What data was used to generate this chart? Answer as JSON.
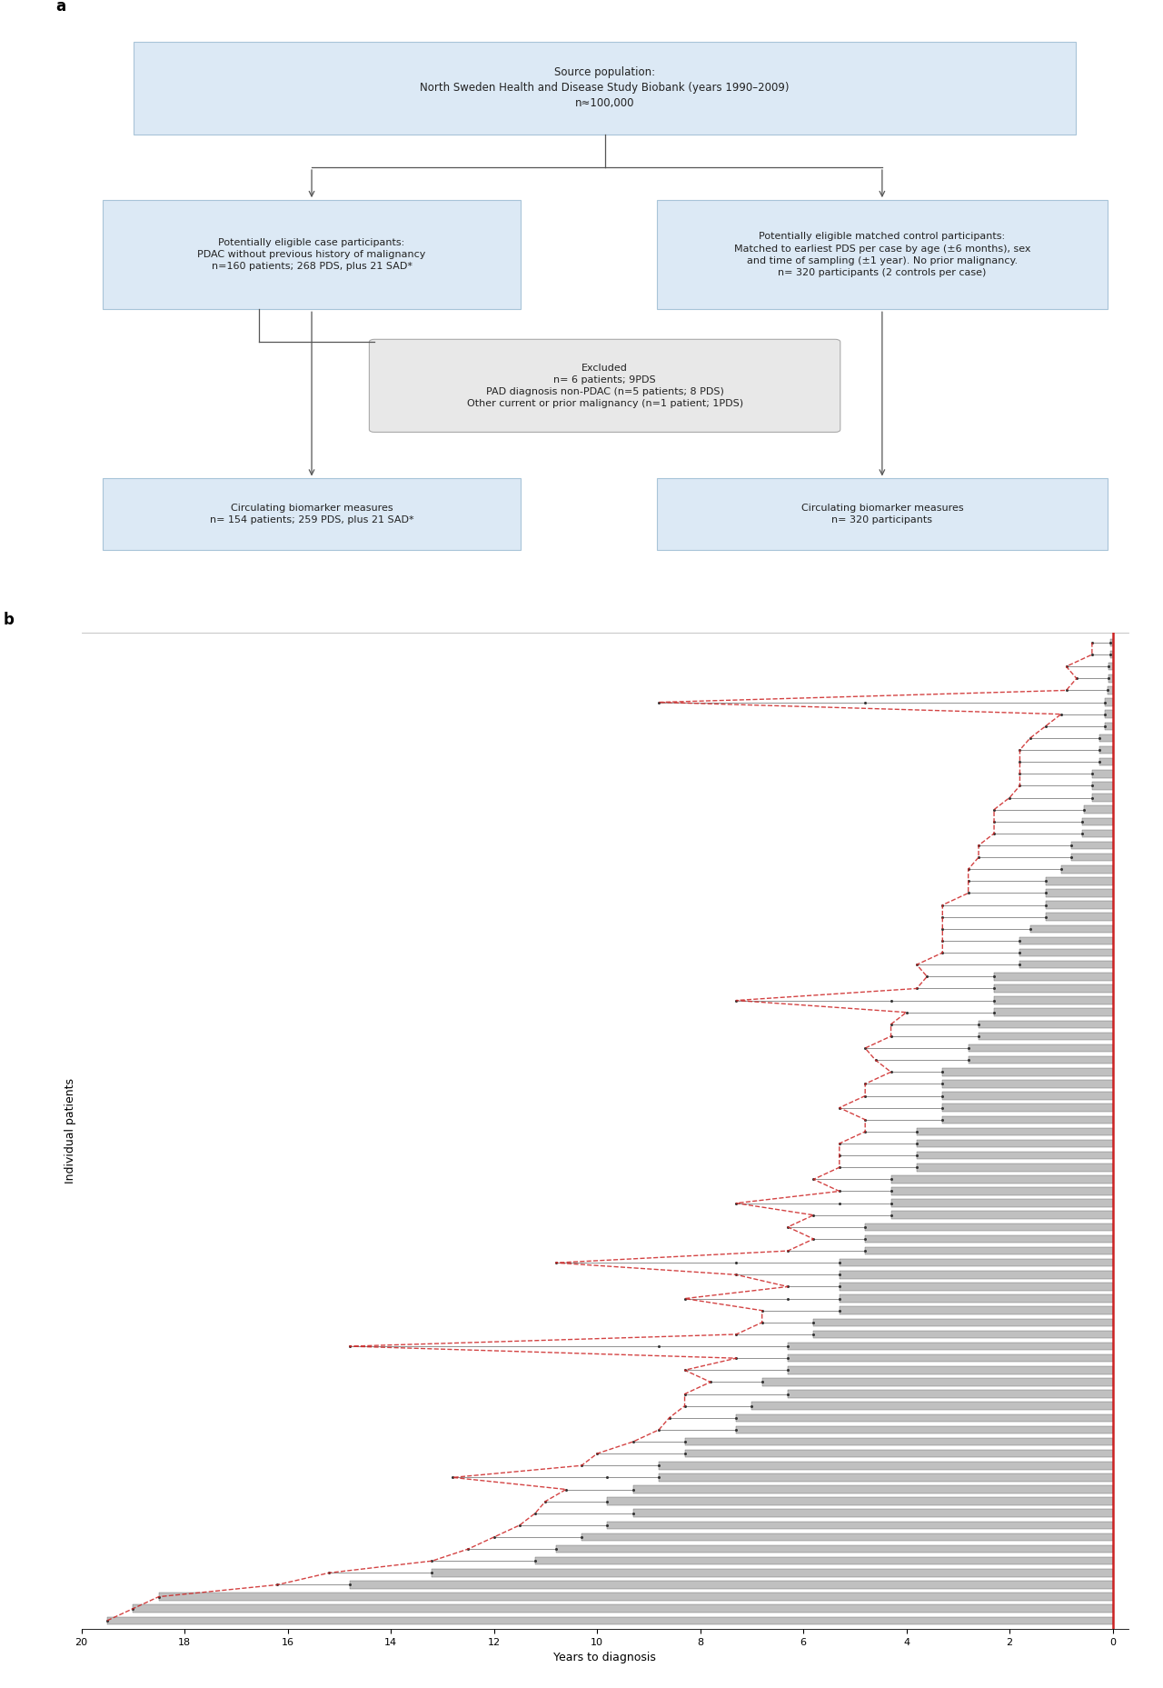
{
  "title_a": "a",
  "title_b": "b",
  "box1_text": "Source population:\nNorth Sweden Health and Disease Study Biobank (years 1990–2009)\nn≈100,000",
  "box2_text": "Potentially eligible case participants:\nPDAC without previous history of malignancy\nn=160 patients; 268 PDS, plus 21 SAD*",
  "box3_text": "Potentially eligible matched control participants:\nMatched to earliest PDS per case by age (±6 months), sex\nand time of sampling (±1 year). No prior malignancy.\nn= 320 participants (2 controls per case)",
  "box4_text": "Excluded\nn= 6 patients; 9PDS\nPAD diagnosis non-PDAC (n=5 patients; 8 PDS)\nOther current or prior malignancy (n=1 patient; 1PDS)",
  "box5_text": "Circulating biomarker measures\nn= 154 patients; 259 PDS, plus 21 SAD*",
  "box6_text": "Circulating biomarker measures\nn= 320 participants",
  "flowchart_bg": "#dce9f5",
  "flowchart_border": "#a8c4d8",
  "excluded_bg": "#e8e8e8",
  "excluded_border": "#aaaaaa",
  "box_text_color": "#222222",
  "ylabel": "Individual patients",
  "xlabel": "Years to diagnosis",
  "red_line_color": "#cc2222",
  "bar_color": "#c0c0c0",
  "bar_edge_color": "#666666",
  "dot_color": "#333333",
  "line_color": "#666666",
  "background_color": "#ffffff",
  "patients": [
    {
      "earliest": 19.5,
      "latest": 19.5,
      "dots": [
        19.5
      ]
    },
    {
      "earliest": 19.0,
      "latest": 19.0,
      "dots": [
        19.0
      ]
    },
    {
      "earliest": 18.5,
      "latest": 18.5,
      "dots": [
        18.5
      ]
    },
    {
      "earliest": 16.2,
      "latest": 14.8,
      "dots": [
        16.2,
        14.8
      ]
    },
    {
      "earliest": 15.2,
      "latest": 13.2,
      "dots": [
        15.2,
        13.2
      ]
    },
    {
      "earliest": 13.2,
      "latest": 11.2,
      "dots": [
        13.2,
        11.2
      ]
    },
    {
      "earliest": 12.5,
      "latest": 10.8,
      "dots": [
        12.5,
        10.8
      ]
    },
    {
      "earliest": 12.0,
      "latest": 10.3,
      "dots": [
        12.0,
        10.3
      ]
    },
    {
      "earliest": 11.5,
      "latest": 9.8,
      "dots": [
        11.5,
        9.8
      ]
    },
    {
      "earliest": 11.2,
      "latest": 9.3,
      "dots": [
        11.2,
        9.3
      ]
    },
    {
      "earliest": 11.0,
      "latest": 9.8,
      "dots": [
        11.0,
        9.8
      ]
    },
    {
      "earliest": 10.6,
      "latest": 9.3,
      "dots": [
        10.6,
        9.3
      ]
    },
    {
      "earliest": 12.8,
      "latest": 8.8,
      "dots": [
        12.8,
        9.8,
        8.8
      ]
    },
    {
      "earliest": 10.3,
      "latest": 8.8,
      "dots": [
        10.3,
        8.8
      ]
    },
    {
      "earliest": 10.0,
      "latest": 8.3,
      "dots": [
        10.0,
        8.3
      ]
    },
    {
      "earliest": 9.3,
      "latest": 8.3,
      "dots": [
        9.3,
        8.3
      ]
    },
    {
      "earliest": 8.8,
      "latest": 7.3,
      "dots": [
        8.8,
        7.3
      ]
    },
    {
      "earliest": 8.6,
      "latest": 7.3,
      "dots": [
        8.6,
        7.3
      ]
    },
    {
      "earliest": 8.3,
      "latest": 7.0,
      "dots": [
        8.3,
        7.0
      ]
    },
    {
      "earliest": 8.3,
      "latest": 6.3,
      "dots": [
        8.3,
        6.3
      ]
    },
    {
      "earliest": 7.8,
      "latest": 6.8,
      "dots": [
        7.8,
        6.8
      ]
    },
    {
      "earliest": 8.3,
      "latest": 6.3,
      "dots": [
        8.3,
        6.3
      ]
    },
    {
      "earliest": 7.3,
      "latest": 6.3,
      "dots": [
        7.3,
        6.3
      ]
    },
    {
      "earliest": 14.8,
      "latest": 6.3,
      "dots": [
        14.8,
        8.8,
        6.3
      ]
    },
    {
      "earliest": 7.3,
      "latest": 5.8,
      "dots": [
        7.3,
        5.8
      ]
    },
    {
      "earliest": 6.8,
      "latest": 5.8,
      "dots": [
        6.8,
        5.8
      ]
    },
    {
      "earliest": 6.8,
      "latest": 5.3,
      "dots": [
        6.8,
        5.3
      ]
    },
    {
      "earliest": 8.3,
      "latest": 5.3,
      "dots": [
        8.3,
        6.3,
        5.3
      ]
    },
    {
      "earliest": 6.3,
      "latest": 5.3,
      "dots": [
        6.3,
        5.3
      ]
    },
    {
      "earliest": 7.3,
      "latest": 5.3,
      "dots": [
        7.3,
        5.3
      ]
    },
    {
      "earliest": 10.8,
      "latest": 5.3,
      "dots": [
        10.8,
        7.3,
        5.3
      ]
    },
    {
      "earliest": 6.3,
      "latest": 4.8,
      "dots": [
        6.3,
        4.8
      ]
    },
    {
      "earliest": 5.8,
      "latest": 4.8,
      "dots": [
        5.8,
        4.8
      ]
    },
    {
      "earliest": 6.3,
      "latest": 4.8,
      "dots": [
        6.3,
        4.8
      ]
    },
    {
      "earliest": 5.8,
      "latest": 4.3,
      "dots": [
        5.8,
        4.3
      ]
    },
    {
      "earliest": 7.3,
      "latest": 4.3,
      "dots": [
        7.3,
        5.3,
        4.3
      ]
    },
    {
      "earliest": 5.3,
      "latest": 4.3,
      "dots": [
        5.3,
        4.3
      ]
    },
    {
      "earliest": 5.8,
      "latest": 4.3,
      "dots": [
        5.8,
        4.3
      ]
    },
    {
      "earliest": 5.3,
      "latest": 3.8,
      "dots": [
        5.3,
        3.8
      ]
    },
    {
      "earliest": 5.3,
      "latest": 3.8,
      "dots": [
        5.3,
        3.8
      ]
    },
    {
      "earliest": 5.3,
      "latest": 3.8,
      "dots": [
        5.3,
        3.8
      ]
    },
    {
      "earliest": 4.8,
      "latest": 3.8,
      "dots": [
        4.8,
        3.8
      ]
    },
    {
      "earliest": 4.8,
      "latest": 3.3,
      "dots": [
        4.8,
        3.3
      ]
    },
    {
      "earliest": 5.3,
      "latest": 3.3,
      "dots": [
        5.3,
        3.3
      ]
    },
    {
      "earliest": 4.8,
      "latest": 3.3,
      "dots": [
        4.8,
        3.3
      ]
    },
    {
      "earliest": 4.8,
      "latest": 3.3,
      "dots": [
        4.8,
        3.3
      ]
    },
    {
      "earliest": 4.3,
      "latest": 3.3,
      "dots": [
        4.3,
        3.3
      ]
    },
    {
      "earliest": 4.6,
      "latest": 2.8,
      "dots": [
        4.6,
        2.8
      ]
    },
    {
      "earliest": 4.8,
      "latest": 2.8,
      "dots": [
        4.8,
        2.8
      ]
    },
    {
      "earliest": 4.3,
      "latest": 2.6,
      "dots": [
        4.3,
        2.6
      ]
    },
    {
      "earliest": 4.3,
      "latest": 2.6,
      "dots": [
        4.3,
        2.6
      ]
    },
    {
      "earliest": 4.0,
      "latest": 2.3,
      "dots": [
        4.0,
        2.3
      ]
    },
    {
      "earliest": 7.3,
      "latest": 2.3,
      "dots": [
        7.3,
        4.3,
        2.3
      ]
    },
    {
      "earliest": 3.8,
      "latest": 2.3,
      "dots": [
        3.8,
        2.3
      ]
    },
    {
      "earliest": 3.6,
      "latest": 2.3,
      "dots": [
        3.6,
        2.3
      ]
    },
    {
      "earliest": 3.8,
      "latest": 1.8,
      "dots": [
        3.8,
        1.8
      ]
    },
    {
      "earliest": 3.3,
      "latest": 1.8,
      "dots": [
        3.3,
        1.8
      ]
    },
    {
      "earliest": 3.3,
      "latest": 1.8,
      "dots": [
        3.3,
        1.8
      ]
    },
    {
      "earliest": 3.3,
      "latest": 1.6,
      "dots": [
        3.3,
        1.6
      ]
    },
    {
      "earliest": 3.3,
      "latest": 1.3,
      "dots": [
        3.3,
        1.3
      ]
    },
    {
      "earliest": 3.3,
      "latest": 1.3,
      "dots": [
        3.3,
        1.3
      ]
    },
    {
      "earliest": 2.8,
      "latest": 1.3,
      "dots": [
        2.8,
        1.3
      ]
    },
    {
      "earliest": 2.8,
      "latest": 1.3,
      "dots": [
        2.8,
        1.3
      ]
    },
    {
      "earliest": 2.8,
      "latest": 1.0,
      "dots": [
        2.8,
        1.0
      ]
    },
    {
      "earliest": 2.6,
      "latest": 0.8,
      "dots": [
        2.6,
        0.8
      ]
    },
    {
      "earliest": 2.6,
      "latest": 0.8,
      "dots": [
        2.6,
        0.8
      ]
    },
    {
      "earliest": 2.3,
      "latest": 0.6,
      "dots": [
        2.3,
        0.6
      ]
    },
    {
      "earliest": 2.3,
      "latest": 0.6,
      "dots": [
        2.3,
        0.6
      ]
    },
    {
      "earliest": 2.3,
      "latest": 0.55,
      "dots": [
        2.3,
        0.55
      ]
    },
    {
      "earliest": 2.0,
      "latest": 0.4,
      "dots": [
        2.0,
        0.4
      ]
    },
    {
      "earliest": 1.8,
      "latest": 0.4,
      "dots": [
        1.8,
        0.4
      ]
    },
    {
      "earliest": 1.8,
      "latest": 0.4,
      "dots": [
        1.8,
        0.4
      ]
    },
    {
      "earliest": 1.8,
      "latest": 0.25,
      "dots": [
        1.8,
        0.25
      ]
    },
    {
      "earliest": 1.8,
      "latest": 0.25,
      "dots": [
        1.8,
        0.25
      ]
    },
    {
      "earliest": 1.6,
      "latest": 0.25,
      "dots": [
        1.6,
        0.25
      ]
    },
    {
      "earliest": 1.3,
      "latest": 0.15,
      "dots": [
        1.3,
        0.15
      ]
    },
    {
      "earliest": 1.0,
      "latest": 0.15,
      "dots": [
        1.0,
        0.15
      ]
    },
    {
      "earliest": 8.8,
      "latest": 0.15,
      "dots": [
        8.8,
        4.8,
        0.15
      ]
    },
    {
      "earliest": 0.9,
      "latest": 0.1,
      "dots": [
        0.9,
        0.1
      ]
    },
    {
      "earliest": 0.7,
      "latest": 0.08,
      "dots": [
        0.7,
        0.08
      ]
    },
    {
      "earliest": 0.9,
      "latest": 0.08,
      "dots": [
        0.9,
        0.08
      ]
    },
    {
      "earliest": 0.4,
      "latest": 0.04,
      "dots": [
        0.4,
        0.04
      ]
    },
    {
      "earliest": 0.4,
      "latest": 0.04,
      "dots": [
        0.4,
        0.04
      ]
    }
  ]
}
